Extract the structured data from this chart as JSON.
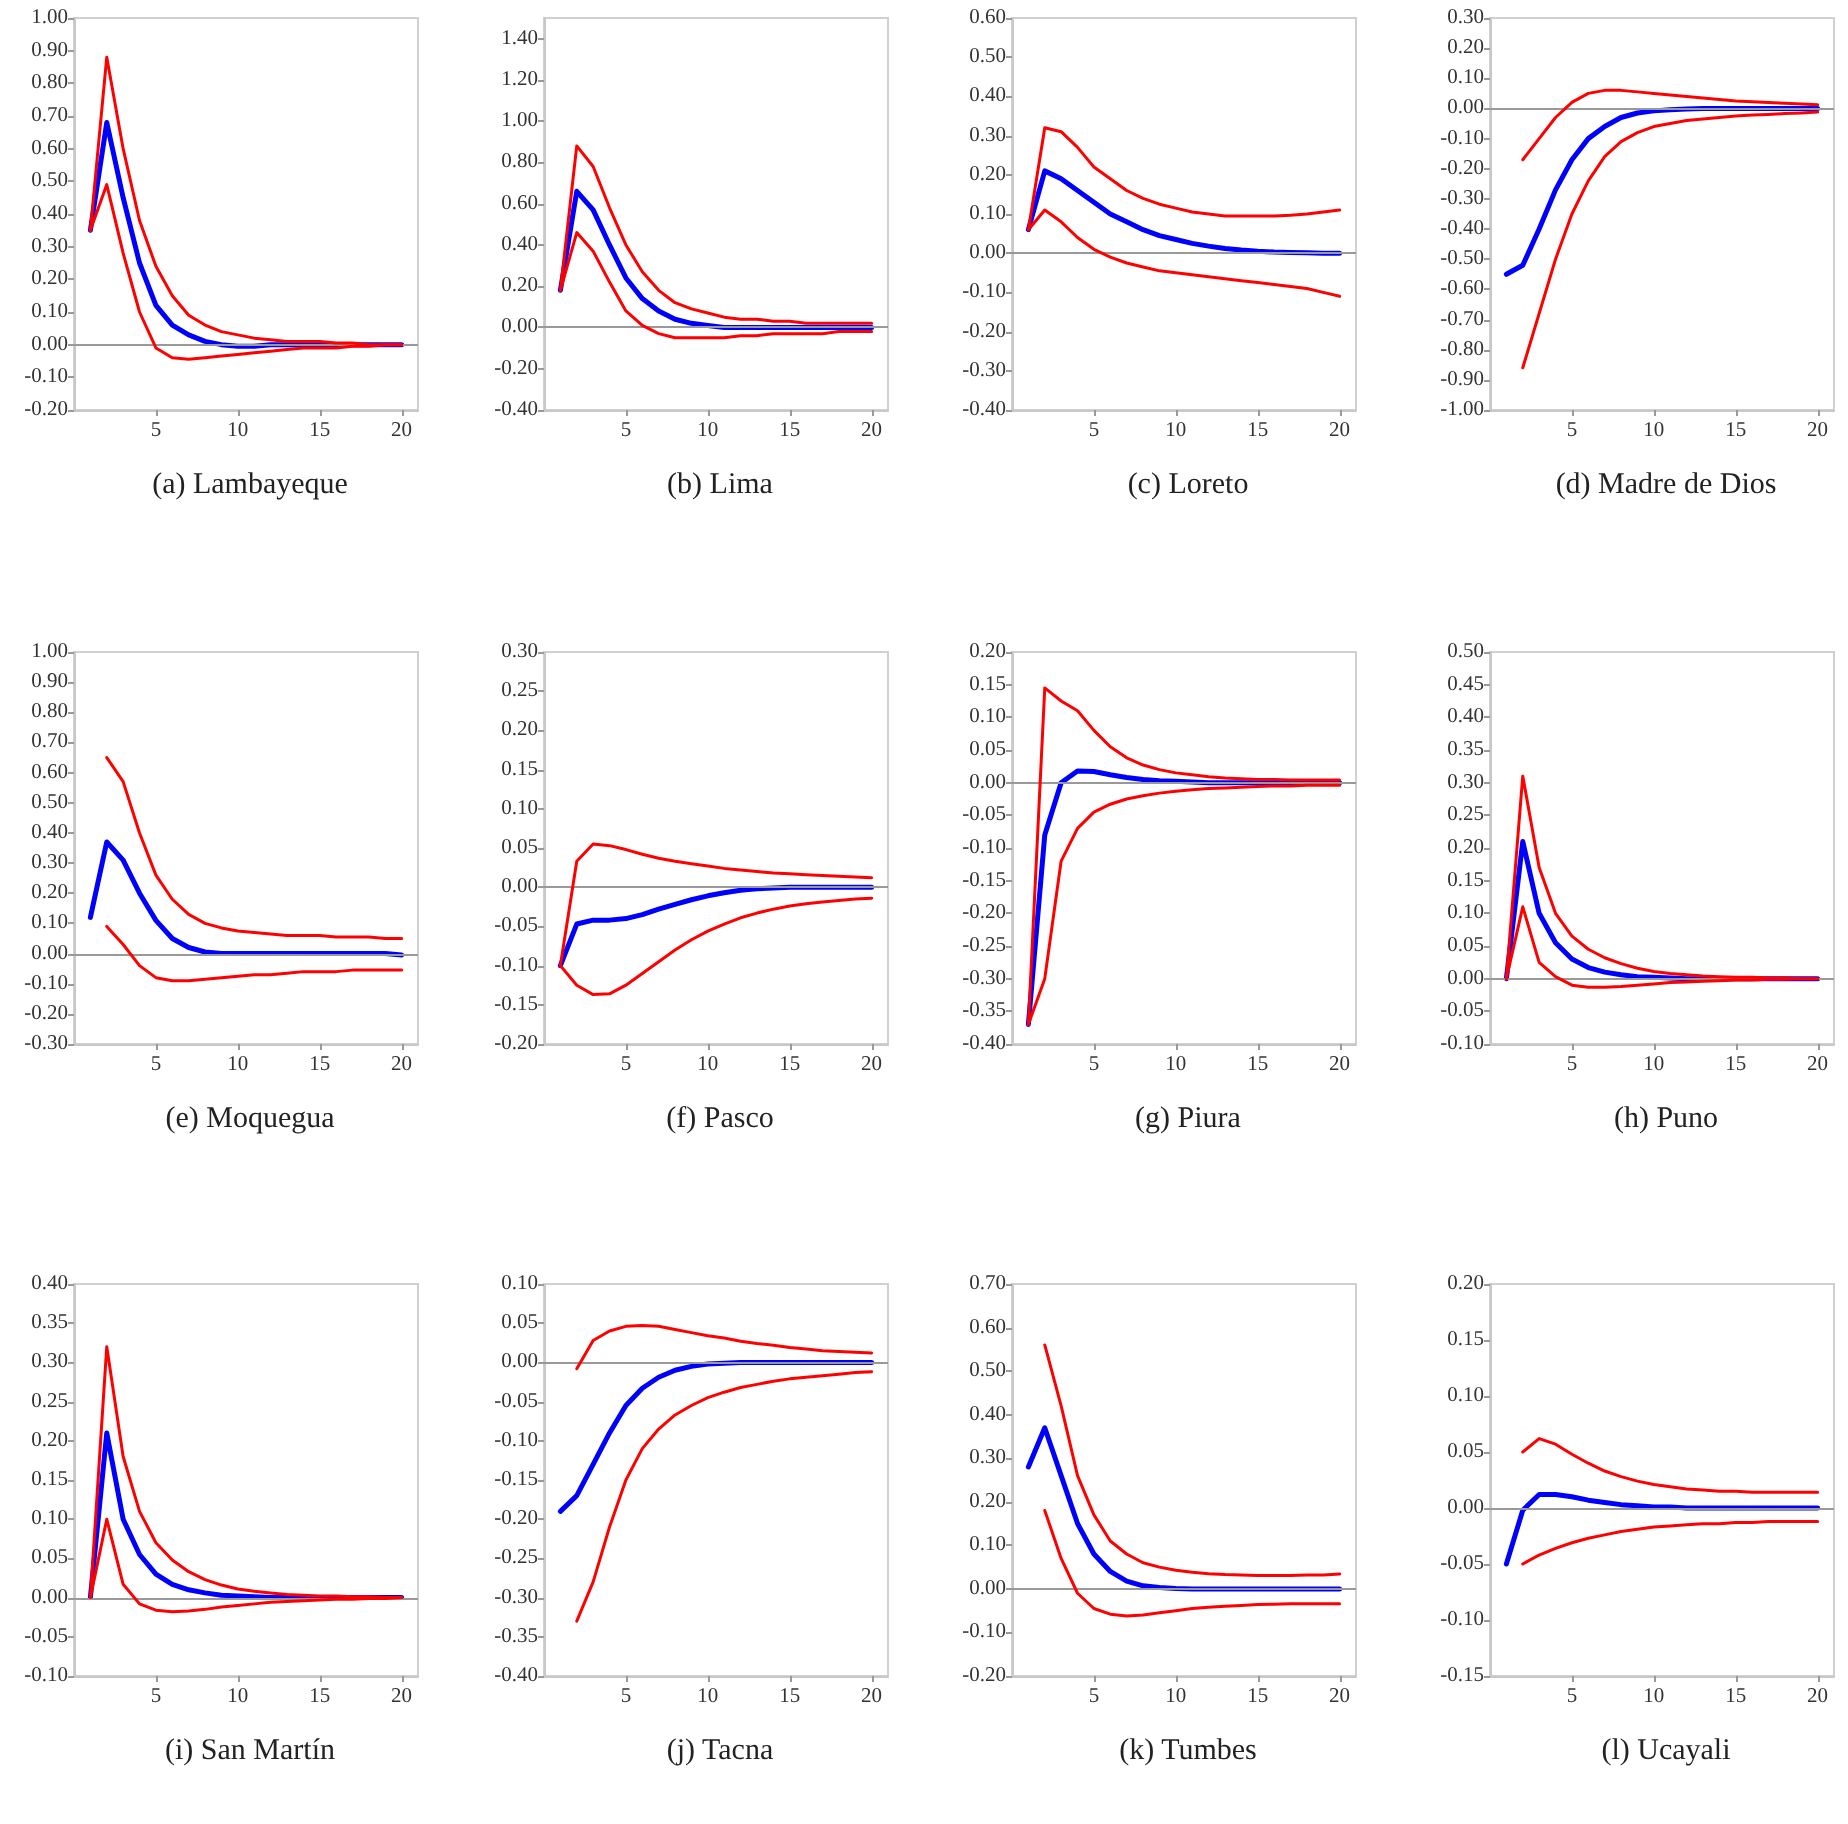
{
  "chart_data": [
    {
      "type": "line",
      "title": "(a) Lambayeque",
      "marker": "none",
      "line_style": "solid",
      "x": [
        1,
        2,
        3,
        4,
        5,
        6,
        7,
        8,
        9,
        10,
        11,
        12,
        13,
        14,
        15,
        16,
        17,
        18,
        19,
        20
      ],
      "xlim": [
        0,
        21
      ],
      "xticks": [
        5,
        10,
        15,
        20
      ],
      "ylim": [
        -0.2,
        1.0
      ],
      "yticks": [
        {
          "value": -0.2,
          "label": "-0.20"
        },
        {
          "value": -0.1,
          "label": "-0.10"
        },
        {
          "value": 0,
          "label": "0.00"
        },
        {
          "value": 0.1,
          "label": "0.10"
        },
        {
          "value": 0.2,
          "label": "0.20"
        },
        {
          "value": 0.3,
          "label": "0.30"
        },
        {
          "value": 0.4,
          "label": "0.40"
        },
        {
          "value": 0.5,
          "label": "0.50"
        },
        {
          "value": 0.6,
          "label": "0.60"
        },
        {
          "value": 0.7,
          "label": "0.70"
        },
        {
          "value": 0.8,
          "label": "0.80"
        },
        {
          "value": 0.9,
          "label": "0.90"
        },
        {
          "value": 1.0,
          "label": "1.00"
        }
      ],
      "ref_lines": [
        {
          "axis": "y",
          "value": 0,
          "color": "#999999"
        }
      ],
      "series": [
        {
          "color": "#ff0000",
          "values": [
            0.35,
            0.88,
            0.6,
            0.38,
            0.24,
            0.15,
            0.09,
            0.06,
            0.04,
            0.03,
            0.02,
            0.015,
            0.01,
            0.01,
            0.01,
            0.005,
            0.005,
            0,
            0,
            0
          ]
        },
        {
          "color": "#ff0000",
          "values": [
            0.35,
            0.49,
            0.28,
            0.1,
            -0.01,
            -0.04,
            -0.045,
            -0.04,
            -0.035,
            -0.03,
            -0.025,
            -0.02,
            -0.015,
            -0.01,
            -0.01,
            -0.01,
            -0.005,
            -0.005,
            0,
            0
          ]
        },
        {
          "color": "#0000ff",
          "values": [
            0.35,
            0.68,
            0.45,
            0.25,
            0.12,
            0.06,
            0.03,
            0.01,
            0,
            -0.005,
            -0.005,
            0,
            0,
            0,
            0,
            0,
            0,
            0,
            0,
            0
          ]
        }
      ]
    },
    {
      "type": "line",
      "title": "(b) Lima",
      "marker": "none",
      "line_style": "solid",
      "x": [
        1,
        2,
        3,
        4,
        5,
        6,
        7,
        8,
        9,
        10,
        11,
        12,
        13,
        14,
        15,
        16,
        17,
        18,
        19,
        20
      ],
      "xlim": [
        0,
        21
      ],
      "xticks": [
        5,
        10,
        15,
        20
      ],
      "ylim": [
        -0.4,
        1.5
      ],
      "yticks": [
        {
          "value": -0.4,
          "label": "-0.40"
        },
        {
          "value": -0.2,
          "label": "-0.20"
        },
        {
          "value": 0,
          "label": "0.00"
        },
        {
          "value": 0.2,
          "label": "0.20"
        },
        {
          "value": 0.4,
          "label": "0.40"
        },
        {
          "value": 0.6,
          "label": "0.60"
        },
        {
          "value": 0.8,
          "label": "0.80"
        },
        {
          "value": 1.0,
          "label": "1.00"
        },
        {
          "value": 1.2,
          "label": "1.20"
        },
        {
          "value": 1.4,
          "label": "1.40"
        }
      ],
      "ref_lines": [
        {
          "axis": "y",
          "value": 0,
          "color": "#999999"
        }
      ],
      "series": [
        {
          "color": "#ff0000",
          "values": [
            0.18,
            0.88,
            0.78,
            0.58,
            0.4,
            0.27,
            0.18,
            0.12,
            0.09,
            0.07,
            0.05,
            0.04,
            0.04,
            0.03,
            0.03,
            0.02,
            0.02,
            0.02,
            0.02,
            0.02
          ]
        },
        {
          "color": "#ff0000",
          "values": [
            0.18,
            0.46,
            0.37,
            0.22,
            0.08,
            0.01,
            -0.03,
            -0.05,
            -0.05,
            -0.05,
            -0.05,
            -0.04,
            -0.04,
            -0.03,
            -0.03,
            -0.03,
            -0.03,
            -0.02,
            -0.02,
            -0.02
          ]
        },
        {
          "color": "#0000ff",
          "values": [
            0.18,
            0.66,
            0.57,
            0.4,
            0.24,
            0.14,
            0.08,
            0.04,
            0.02,
            0.01,
            0,
            0,
            0,
            0,
            0,
            0,
            0,
            0,
            0,
            0
          ]
        }
      ]
    },
    {
      "type": "line",
      "title": "(c) Loreto",
      "marker": "none",
      "line_style": "solid",
      "x": [
        1,
        2,
        3,
        4,
        5,
        6,
        7,
        8,
        9,
        10,
        11,
        12,
        13,
        14,
        15,
        16,
        17,
        18,
        19,
        20
      ],
      "xlim": [
        0,
        21
      ],
      "xticks": [
        5,
        10,
        15,
        20
      ],
      "ylim": [
        -0.4,
        0.6
      ],
      "yticks": [
        {
          "value": -0.4,
          "label": "-0.40"
        },
        {
          "value": -0.3,
          "label": "-0.30"
        },
        {
          "value": -0.2,
          "label": "-0.20"
        },
        {
          "value": -0.1,
          "label": "-0.10"
        },
        {
          "value": 0,
          "label": "0.00"
        },
        {
          "value": 0.1,
          "label": "0.10"
        },
        {
          "value": 0.2,
          "label": "0.20"
        },
        {
          "value": 0.3,
          "label": "0.30"
        },
        {
          "value": 0.4,
          "label": "0.40"
        },
        {
          "value": 0.5,
          "label": "0.50"
        },
        {
          "value": 0.6,
          "label": "0.60"
        }
      ],
      "ref_lines": [
        {
          "axis": "y",
          "value": 0,
          "color": "#999999"
        }
      ],
      "series": [
        {
          "color": "#ff0000",
          "values": [
            0.06,
            0.32,
            0.31,
            0.27,
            0.22,
            0.19,
            0.16,
            0.14,
            0.125,
            0.115,
            0.105,
            0.1,
            0.095,
            0.095,
            0.095,
            0.095,
            0.097,
            0.1,
            0.105,
            0.11
          ]
        },
        {
          "color": "#ff0000",
          "values": [
            0.06,
            0.11,
            0.08,
            0.04,
            0.01,
            -0.01,
            -0.025,
            -0.035,
            -0.045,
            -0.05,
            -0.055,
            -0.06,
            -0.065,
            -0.07,
            -0.075,
            -0.08,
            -0.085,
            -0.09,
            -0.1,
            -0.11
          ]
        },
        {
          "color": "#0000ff",
          "values": [
            0.06,
            0.21,
            0.19,
            0.16,
            0.13,
            0.1,
            0.08,
            0.06,
            0.045,
            0.035,
            0.025,
            0.018,
            0.012,
            0.008,
            0.005,
            0.003,
            0.002,
            0.001,
            0,
            0
          ]
        }
      ]
    },
    {
      "type": "line",
      "title": "(d) Madre de Dios",
      "marker": "none",
      "line_style": "solid",
      "x": [
        1,
        2,
        3,
        4,
        5,
        6,
        7,
        8,
        9,
        10,
        11,
        12,
        13,
        14,
        15,
        16,
        17,
        18,
        19,
        20
      ],
      "xlim": [
        0,
        21
      ],
      "xticks": [
        5,
        10,
        15,
        20
      ],
      "ylim": [
        -1.0,
        0.3
      ],
      "yticks": [
        {
          "value": -1.0,
          "label": "-1.00"
        },
        {
          "value": -0.9,
          "label": "-0.90"
        },
        {
          "value": -0.8,
          "label": "-0.80"
        },
        {
          "value": -0.7,
          "label": "-0.70"
        },
        {
          "value": -0.6,
          "label": "-0.60"
        },
        {
          "value": -0.5,
          "label": "-0.50"
        },
        {
          "value": -0.4,
          "label": "-0.40"
        },
        {
          "value": -0.3,
          "label": "-0.30"
        },
        {
          "value": -0.2,
          "label": "-0.20"
        },
        {
          "value": -0.1,
          "label": "-0.10"
        },
        {
          "value": 0,
          "label": "0.00"
        },
        {
          "value": 0.1,
          "label": "0.10"
        },
        {
          "value": 0.2,
          "label": "0.20"
        },
        {
          "value": 0.3,
          "label": "0.30"
        }
      ],
      "ref_lines": [
        {
          "axis": "y",
          "value": 0,
          "color": "#999999"
        }
      ],
      "series": [
        {
          "color": "#ff0000",
          "values": [
            null,
            -0.17,
            -0.1,
            -0.03,
            0.02,
            0.05,
            0.06,
            0.06,
            0.055,
            0.05,
            0.045,
            0.04,
            0.035,
            0.03,
            0.025,
            0.022,
            0.02,
            0.017,
            0.015,
            0.012
          ]
        },
        {
          "color": "#ff0000",
          "values": [
            null,
            -0.86,
            -0.68,
            -0.5,
            -0.35,
            -0.24,
            -0.16,
            -0.11,
            -0.08,
            -0.06,
            -0.05,
            -0.04,
            -0.035,
            -0.03,
            -0.025,
            -0.022,
            -0.02,
            -0.017,
            -0.015,
            -0.012
          ]
        },
        {
          "color": "#0000ff",
          "values": [
            -0.55,
            -0.52,
            -0.4,
            -0.27,
            -0.17,
            -0.1,
            -0.06,
            -0.03,
            -0.015,
            -0.008,
            -0.004,
            -0.002,
            0,
            0,
            0,
            0,
            0,
            0,
            0,
            0
          ]
        }
      ]
    },
    {
      "type": "line",
      "title": "(e) Moquegua",
      "marker": "none",
      "line_style": "solid",
      "x": [
        1,
        2,
        3,
        4,
        5,
        6,
        7,
        8,
        9,
        10,
        11,
        12,
        13,
        14,
        15,
        16,
        17,
        18,
        19,
        20
      ],
      "xlim": [
        0,
        21
      ],
      "xticks": [
        5,
        10,
        15,
        20
      ],
      "ylim": [
        -0.3,
        1.0
      ],
      "yticks": [
        {
          "value": -0.3,
          "label": "-0.30"
        },
        {
          "value": -0.2,
          "label": "-0.20"
        },
        {
          "value": -0.1,
          "label": "-0.10"
        },
        {
          "value": 0,
          "label": "0.00"
        },
        {
          "value": 0.1,
          "label": "0.10"
        },
        {
          "value": 0.2,
          "label": "0.20"
        },
        {
          "value": 0.3,
          "label": "0.30"
        },
        {
          "value": 0.4,
          "label": "0.40"
        },
        {
          "value": 0.5,
          "label": "0.50"
        },
        {
          "value": 0.6,
          "label": "0.60"
        },
        {
          "value": 0.7,
          "label": "0.70"
        },
        {
          "value": 0.8,
          "label": "0.80"
        },
        {
          "value": 0.9,
          "label": "0.90"
        },
        {
          "value": 1.0,
          "label": "1.00"
        }
      ],
      "ref_lines": [
        {
          "axis": "y",
          "value": 0,
          "color": "#999999"
        }
      ],
      "series": [
        {
          "color": "#ff0000",
          "values": [
            null,
            0.65,
            0.57,
            0.4,
            0.26,
            0.18,
            0.13,
            0.1,
            0.085,
            0.075,
            0.07,
            0.065,
            0.06,
            0.06,
            0.06,
            0.055,
            0.055,
            0.055,
            0.05,
            0.05
          ]
        },
        {
          "color": "#ff0000",
          "values": [
            null,
            0.09,
            0.03,
            -0.04,
            -0.08,
            -0.09,
            -0.09,
            -0.085,
            -0.08,
            -0.075,
            -0.07,
            -0.07,
            -0.065,
            -0.06,
            -0.06,
            -0.06,
            -0.055,
            -0.055,
            -0.055,
            -0.055
          ]
        },
        {
          "color": "#0000ff",
          "values": [
            0.12,
            0.37,
            0.31,
            0.2,
            0.11,
            0.05,
            0.02,
            0.005,
            0,
            0,
            0,
            0,
            0,
            0,
            0,
            0,
            0,
            0,
            0,
            -0.005
          ]
        }
      ]
    },
    {
      "type": "line",
      "title": "(f) Pasco",
      "marker": "none",
      "line_style": "solid",
      "x": [
        1,
        2,
        3,
        4,
        5,
        6,
        7,
        8,
        9,
        10,
        11,
        12,
        13,
        14,
        15,
        16,
        17,
        18,
        19,
        20
      ],
      "xlim": [
        0,
        21
      ],
      "xticks": [
        5,
        10,
        15,
        20
      ],
      "ylim": [
        -0.2,
        0.3
      ],
      "yticks": [
        {
          "value": -0.2,
          "label": "-0.20"
        },
        {
          "value": -0.15,
          "label": "-0.15"
        },
        {
          "value": -0.1,
          "label": "-0.10"
        },
        {
          "value": -0.05,
          "label": "-0.05"
        },
        {
          "value": 0,
          "label": "0.00"
        },
        {
          "value": 0.05,
          "label": "0.05"
        },
        {
          "value": 0.1,
          "label": "0.10"
        },
        {
          "value": 0.15,
          "label": "0.15"
        },
        {
          "value": 0.2,
          "label": "0.20"
        },
        {
          "value": 0.25,
          "label": "0.25"
        },
        {
          "value": 0.3,
          "label": "0.30"
        }
      ],
      "ref_lines": [
        {
          "axis": "y",
          "value": 0,
          "color": "#999999"
        }
      ],
      "series": [
        {
          "color": "#ff0000",
          "values": [
            -0.1,
            0.033,
            0.055,
            0.053,
            0.048,
            0.042,
            0.037,
            0.033,
            0.03,
            0.027,
            0.024,
            0.022,
            0.02,
            0.018,
            0.017,
            0.016,
            0.015,
            0.014,
            0.013,
            0.012
          ]
        },
        {
          "color": "#ff0000",
          "values": [
            -0.1,
            -0.125,
            -0.137,
            -0.136,
            -0.125,
            -0.11,
            -0.095,
            -0.08,
            -0.067,
            -0.056,
            -0.047,
            -0.039,
            -0.033,
            -0.028,
            -0.024,
            -0.021,
            -0.019,
            -0.017,
            -0.015,
            -0.014
          ]
        },
        {
          "color": "#0000ff",
          "values": [
            -0.1,
            -0.047,
            -0.042,
            -0.042,
            -0.04,
            -0.035,
            -0.028,
            -0.022,
            -0.016,
            -0.011,
            -0.007,
            -0.004,
            -0.002,
            -0.001,
            0,
            0,
            0,
            0,
            0,
            0
          ]
        }
      ]
    },
    {
      "type": "line",
      "title": "(g) Piura",
      "marker": "none",
      "line_style": "solid",
      "x": [
        1,
        2,
        3,
        4,
        5,
        6,
        7,
        8,
        9,
        10,
        11,
        12,
        13,
        14,
        15,
        16,
        17,
        18,
        19,
        20
      ],
      "xlim": [
        0,
        21
      ],
      "xticks": [
        5,
        10,
        15,
        20
      ],
      "ylim": [
        -0.4,
        0.2
      ],
      "yticks": [
        {
          "value": -0.4,
          "label": "-0.40"
        },
        {
          "value": -0.35,
          "label": "-0.35"
        },
        {
          "value": -0.3,
          "label": "-0.30"
        },
        {
          "value": -0.25,
          "label": "-0.25"
        },
        {
          "value": -0.2,
          "label": "-0.20"
        },
        {
          "value": -0.15,
          "label": "-0.15"
        },
        {
          "value": -0.1,
          "label": "-0.10"
        },
        {
          "value": -0.05,
          "label": "-0.05"
        },
        {
          "value": 0,
          "label": "0.00"
        },
        {
          "value": 0.05,
          "label": "0.05"
        },
        {
          "value": 0.1,
          "label": "0.10"
        },
        {
          "value": 0.15,
          "label": "0.15"
        },
        {
          "value": 0.2,
          "label": "0.20"
        }
      ],
      "ref_lines": [
        {
          "axis": "y",
          "value": 0,
          "color": "#999999"
        }
      ],
      "series": [
        {
          "color": "#ff0000",
          "values": [
            -0.37,
            0.145,
            0.125,
            0.11,
            0.08,
            0.055,
            0.038,
            0.027,
            0.02,
            0.015,
            0.012,
            0.009,
            0.007,
            0.006,
            0.005,
            0.005,
            0.004,
            0.004,
            0.004,
            0.004
          ]
        },
        {
          "color": "#ff0000",
          "values": [
            -0.37,
            -0.3,
            -0.12,
            -0.07,
            -0.045,
            -0.033,
            -0.025,
            -0.02,
            -0.016,
            -0.013,
            -0.011,
            -0.009,
            -0.008,
            -0.007,
            -0.006,
            -0.005,
            -0.005,
            -0.004,
            -0.004,
            -0.004
          ]
        },
        {
          "color": "#0000ff",
          "values": [
            -0.37,
            -0.08,
            0,
            0.018,
            0.017,
            0.012,
            0.008,
            0.005,
            0.003,
            0.002,
            0.001,
            0,
            0,
            0,
            0,
            0,
            0,
            0,
            0,
            0
          ]
        }
      ]
    },
    {
      "type": "line",
      "title": "(h) Puno",
      "marker": "none",
      "line_style": "solid",
      "x": [
        1,
        2,
        3,
        4,
        5,
        6,
        7,
        8,
        9,
        10,
        11,
        12,
        13,
        14,
        15,
        16,
        17,
        18,
        19,
        20
      ],
      "xlim": [
        0,
        21
      ],
      "xticks": [
        5,
        10,
        15,
        20
      ],
      "ylim": [
        -0.1,
        0.5
      ],
      "yticks": [
        {
          "value": -0.1,
          "label": "-0.10"
        },
        {
          "value": -0.05,
          "label": "-0.05"
        },
        {
          "value": 0,
          "label": "0.00"
        },
        {
          "value": 0.05,
          "label": "0.05"
        },
        {
          "value": 0.1,
          "label": "0.10"
        },
        {
          "value": 0.15,
          "label": "0.15"
        },
        {
          "value": 0.2,
          "label": "0.20"
        },
        {
          "value": 0.25,
          "label": "0.25"
        },
        {
          "value": 0.3,
          "label": "0.30"
        },
        {
          "value": 0.35,
          "label": "0.35"
        },
        {
          "value": 0.4,
          "label": "0.40"
        },
        {
          "value": 0.45,
          "label": "0.45"
        },
        {
          "value": 0.5,
          "label": "0.50"
        }
      ],
      "ref_lines": [
        {
          "axis": "y",
          "value": 0,
          "color": "#999999"
        }
      ],
      "series": [
        {
          "color": "#ff0000",
          "values": [
            0,
            0.31,
            0.17,
            0.1,
            0.065,
            0.045,
            0.032,
            0.023,
            0.016,
            0.011,
            0.008,
            0.006,
            0.004,
            0.003,
            0.002,
            0.002,
            0.001,
            0.001,
            0,
            0
          ]
        },
        {
          "color": "#ff0000",
          "values": [
            0,
            0.11,
            0.025,
            0.003,
            -0.01,
            -0.013,
            -0.013,
            -0.012,
            -0.01,
            -0.008,
            -0.006,
            -0.005,
            -0.004,
            -0.003,
            -0.002,
            -0.002,
            -0.001,
            -0.001,
            0,
            0
          ]
        },
        {
          "color": "#0000ff",
          "values": [
            0,
            0.21,
            0.1,
            0.055,
            0.03,
            0.017,
            0.01,
            0.006,
            0.003,
            0.002,
            0.001,
            0,
            0,
            0,
            0,
            0,
            0,
            0,
            0,
            0
          ]
        }
      ]
    },
    {
      "type": "line",
      "title": "(i) San Martín",
      "marker": "none",
      "line_style": "solid",
      "x": [
        1,
        2,
        3,
        4,
        5,
        6,
        7,
        8,
        9,
        10,
        11,
        12,
        13,
        14,
        15,
        16,
        17,
        18,
        19,
        20
      ],
      "xlim": [
        0,
        21
      ],
      "xticks": [
        5,
        10,
        15,
        20
      ],
      "ylim": [
        -0.1,
        0.4
      ],
      "yticks": [
        {
          "value": -0.1,
          "label": "-0.10"
        },
        {
          "value": -0.05,
          "label": "-0.05"
        },
        {
          "value": 0,
          "label": "0.00"
        },
        {
          "value": 0.05,
          "label": "0.05"
        },
        {
          "value": 0.1,
          "label": "0.10"
        },
        {
          "value": 0.15,
          "label": "0.15"
        },
        {
          "value": 0.2,
          "label": "0.20"
        },
        {
          "value": 0.25,
          "label": "0.25"
        },
        {
          "value": 0.3,
          "label": "0.30"
        },
        {
          "value": 0.35,
          "label": "0.35"
        },
        {
          "value": 0.4,
          "label": "0.40"
        }
      ],
      "ref_lines": [
        {
          "axis": "y",
          "value": 0,
          "color": "#999999"
        }
      ],
      "series": [
        {
          "color": "#ff0000",
          "values": [
            0,
            0.32,
            0.18,
            0.11,
            0.07,
            0.048,
            0.033,
            0.023,
            0.016,
            0.011,
            0.008,
            0.006,
            0.004,
            0.003,
            0.002,
            0.002,
            0.001,
            0.001,
            0,
            0
          ]
        },
        {
          "color": "#ff0000",
          "values": [
            0,
            0.1,
            0.017,
            -0.008,
            -0.016,
            -0.018,
            -0.017,
            -0.015,
            -0.012,
            -0.01,
            -0.008,
            -0.006,
            -0.005,
            -0.004,
            -0.003,
            -0.002,
            -0.002,
            -0.001,
            -0.001,
            0
          ]
        },
        {
          "color": "#0000ff",
          "values": [
            0,
            0.21,
            0.1,
            0.055,
            0.03,
            0.017,
            0.01,
            0.006,
            0.003,
            0.002,
            0.001,
            0,
            0,
            0,
            0,
            0,
            0,
            0,
            0,
            0
          ]
        }
      ]
    },
    {
      "type": "line",
      "title": "(j) Tacna",
      "marker": "none",
      "line_style": "solid",
      "x": [
        1,
        2,
        3,
        4,
        5,
        6,
        7,
        8,
        9,
        10,
        11,
        12,
        13,
        14,
        15,
        16,
        17,
        18,
        19,
        20
      ],
      "xlim": [
        0,
        21
      ],
      "xticks": [
        5,
        10,
        15,
        20
      ],
      "ylim": [
        -0.4,
        0.1
      ],
      "yticks": [
        {
          "value": -0.4,
          "label": "-0.40"
        },
        {
          "value": -0.35,
          "label": "-0.35"
        },
        {
          "value": -0.3,
          "label": "-0.30"
        },
        {
          "value": -0.25,
          "label": "-0.25"
        },
        {
          "value": -0.2,
          "label": "-0.20"
        },
        {
          "value": -0.15,
          "label": "-0.15"
        },
        {
          "value": -0.1,
          "label": "-0.10"
        },
        {
          "value": -0.05,
          "label": "-0.05"
        },
        {
          "value": 0,
          "label": "0.00"
        },
        {
          "value": 0.05,
          "label": "0.05"
        },
        {
          "value": 0.1,
          "label": "0.10"
        }
      ],
      "ref_lines": [
        {
          "axis": "y",
          "value": 0,
          "color": "#999999"
        }
      ],
      "series": [
        {
          "color": "#ff0000",
          "values": [
            null,
            -0.008,
            0.028,
            0.04,
            0.046,
            0.047,
            0.046,
            0.042,
            0.038,
            0.034,
            0.031,
            0.027,
            0.024,
            0.022,
            0.019,
            0.017,
            0.015,
            0.014,
            0.013,
            0.012
          ]
        },
        {
          "color": "#ff0000",
          "values": [
            null,
            -0.33,
            -0.28,
            -0.21,
            -0.15,
            -0.11,
            -0.085,
            -0.067,
            -0.055,
            -0.045,
            -0.038,
            -0.032,
            -0.028,
            -0.024,
            -0.021,
            -0.019,
            -0.017,
            -0.015,
            -0.013,
            -0.012
          ]
        },
        {
          "color": "#0000ff",
          "values": [
            -0.19,
            -0.17,
            -0.13,
            -0.09,
            -0.055,
            -0.033,
            -0.019,
            -0.01,
            -0.005,
            -0.002,
            -0.001,
            0,
            0,
            0,
            0,
            0,
            0,
            0,
            0,
            0
          ]
        }
      ]
    },
    {
      "type": "line",
      "title": "(k) Tumbes",
      "marker": "none",
      "line_style": "solid",
      "x": [
        1,
        2,
        3,
        4,
        5,
        6,
        7,
        8,
        9,
        10,
        11,
        12,
        13,
        14,
        15,
        16,
        17,
        18,
        19,
        20
      ],
      "xlim": [
        0,
        21
      ],
      "xticks": [
        5,
        10,
        15,
        20
      ],
      "ylim": [
        -0.2,
        0.7
      ],
      "yticks": [
        {
          "value": -0.2,
          "label": "-0.20"
        },
        {
          "value": -0.1,
          "label": "-0.10"
        },
        {
          "value": 0,
          "label": "0.00"
        },
        {
          "value": 0.1,
          "label": "0.10"
        },
        {
          "value": 0.2,
          "label": "0.20"
        },
        {
          "value": 0.3,
          "label": "0.30"
        },
        {
          "value": 0.4,
          "label": "0.40"
        },
        {
          "value": 0.5,
          "label": "0.50"
        },
        {
          "value": 0.6,
          "label": "0.60"
        },
        {
          "value": 0.7,
          "label": "0.70"
        }
      ],
      "ref_lines": [
        {
          "axis": "y",
          "value": 0,
          "color": "#999999"
        }
      ],
      "series": [
        {
          "color": "#ff0000",
          "values": [
            null,
            0.56,
            0.42,
            0.26,
            0.17,
            0.11,
            0.08,
            0.06,
            0.05,
            0.043,
            0.038,
            0.035,
            0.033,
            0.032,
            0.031,
            0.031,
            0.031,
            0.032,
            0.032,
            0.034
          ]
        },
        {
          "color": "#ff0000",
          "values": [
            null,
            0.18,
            0.07,
            -0.01,
            -0.045,
            -0.058,
            -0.062,
            -0.06,
            -0.055,
            -0.05,
            -0.045,
            -0.042,
            -0.04,
            -0.038,
            -0.036,
            -0.035,
            -0.034,
            -0.034,
            -0.034,
            -0.034
          ]
        },
        {
          "color": "#0000ff",
          "values": [
            0.28,
            0.37,
            0.26,
            0.15,
            0.08,
            0.04,
            0.018,
            0.007,
            0.003,
            0.001,
            0,
            0,
            0,
            0,
            0,
            0,
            0,
            0,
            0,
            0
          ]
        }
      ]
    },
    {
      "type": "line",
      "title": "(l) Ucayali",
      "marker": "none",
      "line_style": "solid",
      "x": [
        1,
        2,
        3,
        4,
        5,
        6,
        7,
        8,
        9,
        10,
        11,
        12,
        13,
        14,
        15,
        16,
        17,
        18,
        19,
        20
      ],
      "xlim": [
        0,
        21
      ],
      "xticks": [
        5,
        10,
        15,
        20
      ],
      "ylim": [
        -0.15,
        0.2
      ],
      "yticks": [
        {
          "value": -0.15,
          "label": "-0.15"
        },
        {
          "value": -0.1,
          "label": "-0.10"
        },
        {
          "value": -0.05,
          "label": "-0.05"
        },
        {
          "value": 0,
          "label": "0.00"
        },
        {
          "value": 0.05,
          "label": "0.05"
        },
        {
          "value": 0.1,
          "label": "0.10"
        },
        {
          "value": 0.15,
          "label": "0.15"
        },
        {
          "value": 0.2,
          "label": "0.20"
        }
      ],
      "ref_lines": [
        {
          "axis": "y",
          "value": 0,
          "color": "#999999"
        }
      ],
      "series": [
        {
          "color": "#ff0000",
          "values": [
            null,
            0.05,
            0.062,
            0.057,
            0.048,
            0.04,
            0.033,
            0.028,
            0.024,
            0.021,
            0.019,
            0.017,
            0.016,
            0.015,
            0.015,
            0.014,
            0.014,
            0.014,
            0.014,
            0.014
          ]
        },
        {
          "color": "#ff0000",
          "values": [
            null,
            -0.05,
            -0.042,
            -0.036,
            -0.031,
            -0.027,
            -0.024,
            -0.021,
            -0.019,
            -0.017,
            -0.016,
            -0.015,
            -0.014,
            -0.014,
            -0.013,
            -0.013,
            -0.012,
            -0.012,
            -0.012,
            -0.012
          ]
        },
        {
          "color": "#0000ff",
          "values": [
            -0.05,
            -0.002,
            0.012,
            0.012,
            0.01,
            0.007,
            0.005,
            0.003,
            0.002,
            0.001,
            0.001,
            0,
            0,
            0,
            0,
            0,
            0,
            0,
            0,
            0
          ]
        }
      ]
    }
  ]
}
